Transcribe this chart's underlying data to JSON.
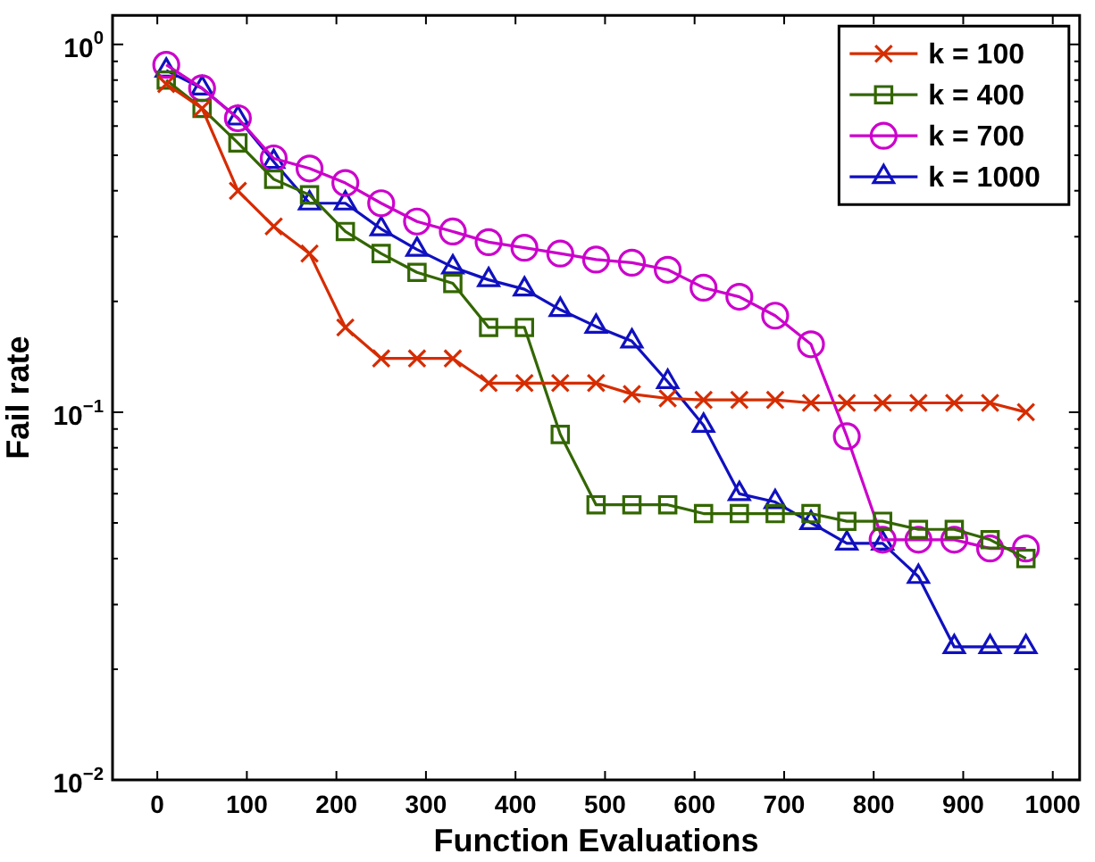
{
  "chart_data": {
    "type": "line",
    "xlabel": "Function Evaluations",
    "ylabel": "Fail rate",
    "x": [
      10,
      50,
      90,
      130,
      170,
      210,
      250,
      290,
      330,
      370,
      410,
      450,
      490,
      530,
      570,
      610,
      650,
      690,
      730,
      770,
      810,
      850,
      890,
      930,
      970
    ],
    "series": [
      {
        "name": "k = 100",
        "color": "#d62c00",
        "marker": "cross",
        "values": [
          0.78,
          0.67,
          0.4,
          0.32,
          0.27,
          0.17,
          0.14,
          0.14,
          0.14,
          0.12,
          0.12,
          0.12,
          0.12,
          0.112,
          0.109,
          0.108,
          0.108,
          0.108,
          0.106,
          0.106,
          0.106,
          0.106,
          0.106,
          0.106,
          0.1
        ]
      },
      {
        "name": "k = 400",
        "color": "#336600",
        "marker": "square",
        "values": [
          0.8,
          0.67,
          0.54,
          0.43,
          0.39,
          0.31,
          0.27,
          0.24,
          0.224,
          0.17,
          0.17,
          0.087,
          0.056,
          0.056,
          0.056,
          0.053,
          0.053,
          0.053,
          0.053,
          0.0505,
          0.0505,
          0.048,
          0.048,
          0.045,
          0.04
        ]
      },
      {
        "name": "k = 700",
        "color": "#cc00cc",
        "marker": "circle",
        "values": [
          0.88,
          0.76,
          0.63,
          0.49,
          0.46,
          0.42,
          0.37,
          0.33,
          0.31,
          0.29,
          0.28,
          0.27,
          0.26,
          0.255,
          0.244,
          0.218,
          0.206,
          0.183,
          0.153,
          0.086,
          0.045,
          0.045,
          0.045,
          0.0426,
          0.0426
        ]
      },
      {
        "name": "k = 1000",
        "color": "#1010c0",
        "marker": "triangle",
        "values": [
          0.85,
          0.76,
          0.63,
          0.48,
          0.37,
          0.37,
          0.315,
          0.277,
          0.248,
          0.229,
          0.216,
          0.19,
          0.171,
          0.156,
          0.121,
          0.092,
          0.06,
          0.057,
          0.05,
          0.044,
          0.044,
          0.0357,
          0.023,
          0.023,
          0.023
        ]
      }
    ],
    "log": "y",
    "xlim": [
      -50,
      1030
    ],
    "xticks": [
      0,
      100,
      200,
      300,
      400,
      500,
      600,
      700,
      800,
      900,
      1000
    ],
    "ylim": [
      0.01,
      1.2
    ],
    "yticks": [
      {
        "value": 0.01,
        "label": "10$^{−2}$"
      },
      {
        "value": 0.02,
        "label": null
      },
      {
        "value": 0.03,
        "label": null
      },
      {
        "value": 0.04,
        "label": null
      },
      {
        "value": 0.05,
        "label": null
      },
      {
        "value": 0.06,
        "label": null
      },
      {
        "value": 0.07,
        "label": null
      },
      {
        "value": 0.08,
        "label": null
      },
      {
        "value": 0.09,
        "label": null
      },
      {
        "value": 0.1,
        "label": "10$^{−1}$"
      },
      {
        "value": 0.2,
        "label": null
      },
      {
        "value": 0.3,
        "label": null
      },
      {
        "value": 0.4,
        "label": null
      },
      {
        "value": 0.5,
        "label": null
      },
      {
        "value": 0.6,
        "label": null
      },
      {
        "value": 0.7,
        "label": null
      },
      {
        "value": 0.8,
        "label": null
      },
      {
        "value": 0.9,
        "label": null
      },
      {
        "value": 1,
        "label": "10$^{0}$"
      }
    ],
    "grid": false,
    "legend": "top right",
    "line_style": "solid"
  }
}
